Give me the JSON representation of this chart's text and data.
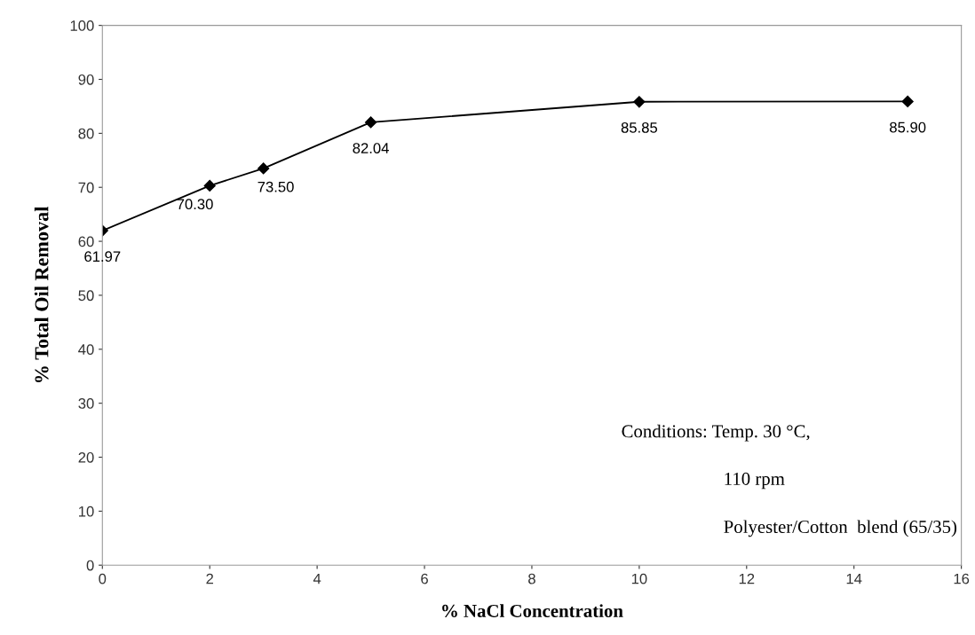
{
  "chart_data": {
    "type": "line",
    "xlabel": "% NaCl Concentration",
    "ylabel": "% Total Oil Removal",
    "x": [
      0,
      2,
      3,
      5,
      10,
      15
    ],
    "series": [
      {
        "color": "#000000",
        "values": [
          61.97,
          70.3,
          73.5,
          82.04,
          85.85,
          85.9
        ],
        "value_labels": [
          "61.97",
          "70.30",
          "73.50",
          "82.04",
          "85.85",
          "85.90"
        ]
      }
    ],
    "xlim": [
      0,
      16
    ],
    "xticks": [
      0,
      2,
      4,
      6,
      8,
      10,
      12,
      14,
      16
    ],
    "ylim": [
      0,
      100
    ],
    "yticks": [
      0,
      10,
      20,
      30,
      40,
      50,
      60,
      70,
      80,
      90,
      100
    ],
    "grid": false,
    "legend": false,
    "marker": "diamond",
    "line_style": "solid",
    "annotations": [
      "Conditions: Temp. 30 °C,",
      "110 rpm",
      "Polyester/Cotton  blend (65/35)"
    ]
  }
}
